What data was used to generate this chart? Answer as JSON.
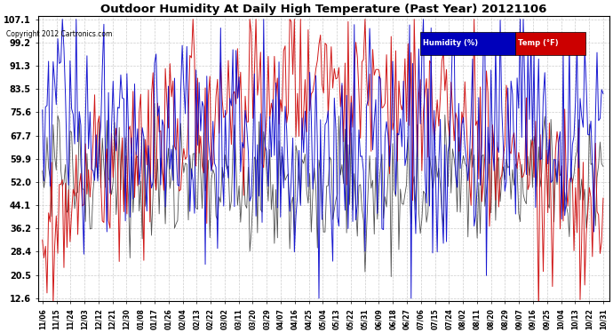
{
  "title": "Outdoor Humidity At Daily High Temperature (Past Year) 20121106",
  "copyright": "Copyright 2012 Cartronics.com",
  "legend_humidity": "Humidity (%)",
  "legend_temp": "Temp (°F)",
  "legend_humidity_bg": "#0000bb",
  "legend_temp_bg": "#cc0000",
  "yticks": [
    12.6,
    20.5,
    28.4,
    36.2,
    44.1,
    52.0,
    59.9,
    67.7,
    75.6,
    83.5,
    91.3,
    99.2,
    107.1
  ],
  "xtick_labels": [
    "11/06",
    "11/15",
    "11/24",
    "12/03",
    "12/12",
    "12/21",
    "12/30",
    "01/08",
    "01/17",
    "01/26",
    "02/04",
    "02/13",
    "02/22",
    "03/02",
    "03/11",
    "03/20",
    "03/29",
    "04/07",
    "04/16",
    "04/25",
    "05/04",
    "05/13",
    "05/22",
    "05/31",
    "06/09",
    "06/18",
    "06/27",
    "07/06",
    "07/15",
    "07/24",
    "08/02",
    "08/11",
    "08/20",
    "08/29",
    "09/07",
    "09/16",
    "09/25",
    "10/04",
    "10/13",
    "10/22",
    "10/31"
  ],
  "bg_color": "#ffffff",
  "grid_color": "#cccccc",
  "humidity_color": "#0000cc",
  "temp_color": "#cc0000",
  "black_color": "#333333",
  "ymin": 12.6,
  "ymax": 107.1,
  "figwidth": 6.9,
  "figheight": 3.75,
  "dpi": 100
}
